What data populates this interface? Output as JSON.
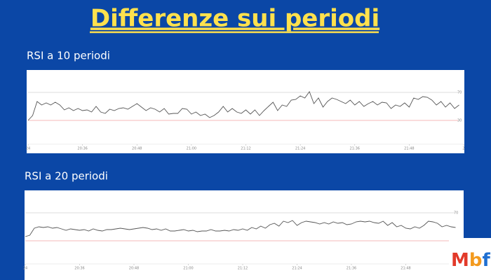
{
  "title": "Differenze sui periodi",
  "logo": [
    "M",
    "b",
    "f"
  ],
  "chart_data": [
    {
      "type": "line",
      "title": "RSI a 10 periodi",
      "color": "#555555",
      "xlim": [
        0,
        96
      ],
      "ylim": [
        0,
        100
      ],
      "xticks": [
        {
          "value": 0,
          "label": "24"
        },
        {
          "value": 12,
          "label": "20:36"
        },
        {
          "value": 24,
          "label": "20:48"
        },
        {
          "value": 36,
          "label": "21:00"
        },
        {
          "value": 48,
          "label": "21:12"
        },
        {
          "value": 60,
          "label": "21:24"
        },
        {
          "value": 72,
          "label": "21:36"
        },
        {
          "value": 84,
          "label": "21:48"
        },
        {
          "value": 96,
          "label": "2"
        }
      ],
      "yticks": [
        30,
        70
      ],
      "grid": true,
      "grid_colors": [
        "#f2a0a0",
        "#d0d0d0"
      ],
      "values": [
        30,
        37,
        57,
        52,
        55,
        52,
        56,
        52,
        45,
        48,
        44,
        47,
        44,
        45,
        42,
        50,
        42,
        40,
        46,
        44,
        47,
        48,
        46,
        50,
        54,
        49,
        44,
        48,
        46,
        42,
        47,
        39,
        40,
        40,
        47,
        46,
        39,
        42,
        37,
        39,
        34,
        37,
        42,
        50,
        42,
        47,
        42,
        40,
        45,
        39,
        45,
        37,
        44,
        50,
        56,
        44,
        52,
        50,
        59,
        60,
        65,
        62,
        71,
        54,
        62,
        49,
        57,
        62,
        60,
        57,
        54,
        59,
        52,
        57,
        50,
        54,
        57,
        52,
        56,
        55,
        47,
        52,
        50,
        55,
        49,
        62,
        60,
        64,
        63,
        59,
        52,
        57,
        49,
        55,
        47,
        52
      ]
    },
    {
      "type": "line",
      "title": "RSI a 20 periodi",
      "color": "#555555",
      "xlim": [
        0,
        96
      ],
      "ylim": [
        0,
        100
      ],
      "xticks": [
        {
          "value": 0,
          "label": "24"
        },
        {
          "value": 12,
          "label": "20:36"
        },
        {
          "value": 24,
          "label": "20:48"
        },
        {
          "value": 36,
          "label": "21:00"
        },
        {
          "value": 48,
          "label": "21:12"
        },
        {
          "value": 60,
          "label": "21:24"
        },
        {
          "value": 72,
          "label": "21:36"
        },
        {
          "value": 84,
          "label": "21:48"
        }
      ],
      "yticks": [
        30,
        70
      ],
      "grid": true,
      "grid_colors": [
        "#f2a0a0",
        "#d0d0d0"
      ],
      "values": [
        36,
        38,
        48,
        50,
        49,
        50,
        48,
        49,
        47,
        45,
        47,
        46,
        45,
        46,
        44,
        47,
        45,
        44,
        46,
        46,
        47,
        48,
        47,
        46,
        47,
        48,
        49,
        48,
        46,
        47,
        45,
        47,
        44,
        44,
        45,
        46,
        44,
        45,
        43,
        44,
        44,
        46,
        44,
        44,
        45,
        44,
        46,
        45,
        47,
        45,
        49,
        47,
        51,
        48,
        53,
        55,
        51,
        58,
        56,
        59,
        52,
        56,
        58,
        57,
        56,
        54,
        56,
        54,
        57,
        55,
        56,
        53,
        54,
        57,
        58,
        57,
        58,
        56,
        55,
        58,
        52,
        56,
        50,
        52,
        48,
        47,
        50,
        48,
        52,
        58,
        57,
        55,
        50,
        52,
        50,
        49
      ]
    }
  ]
}
